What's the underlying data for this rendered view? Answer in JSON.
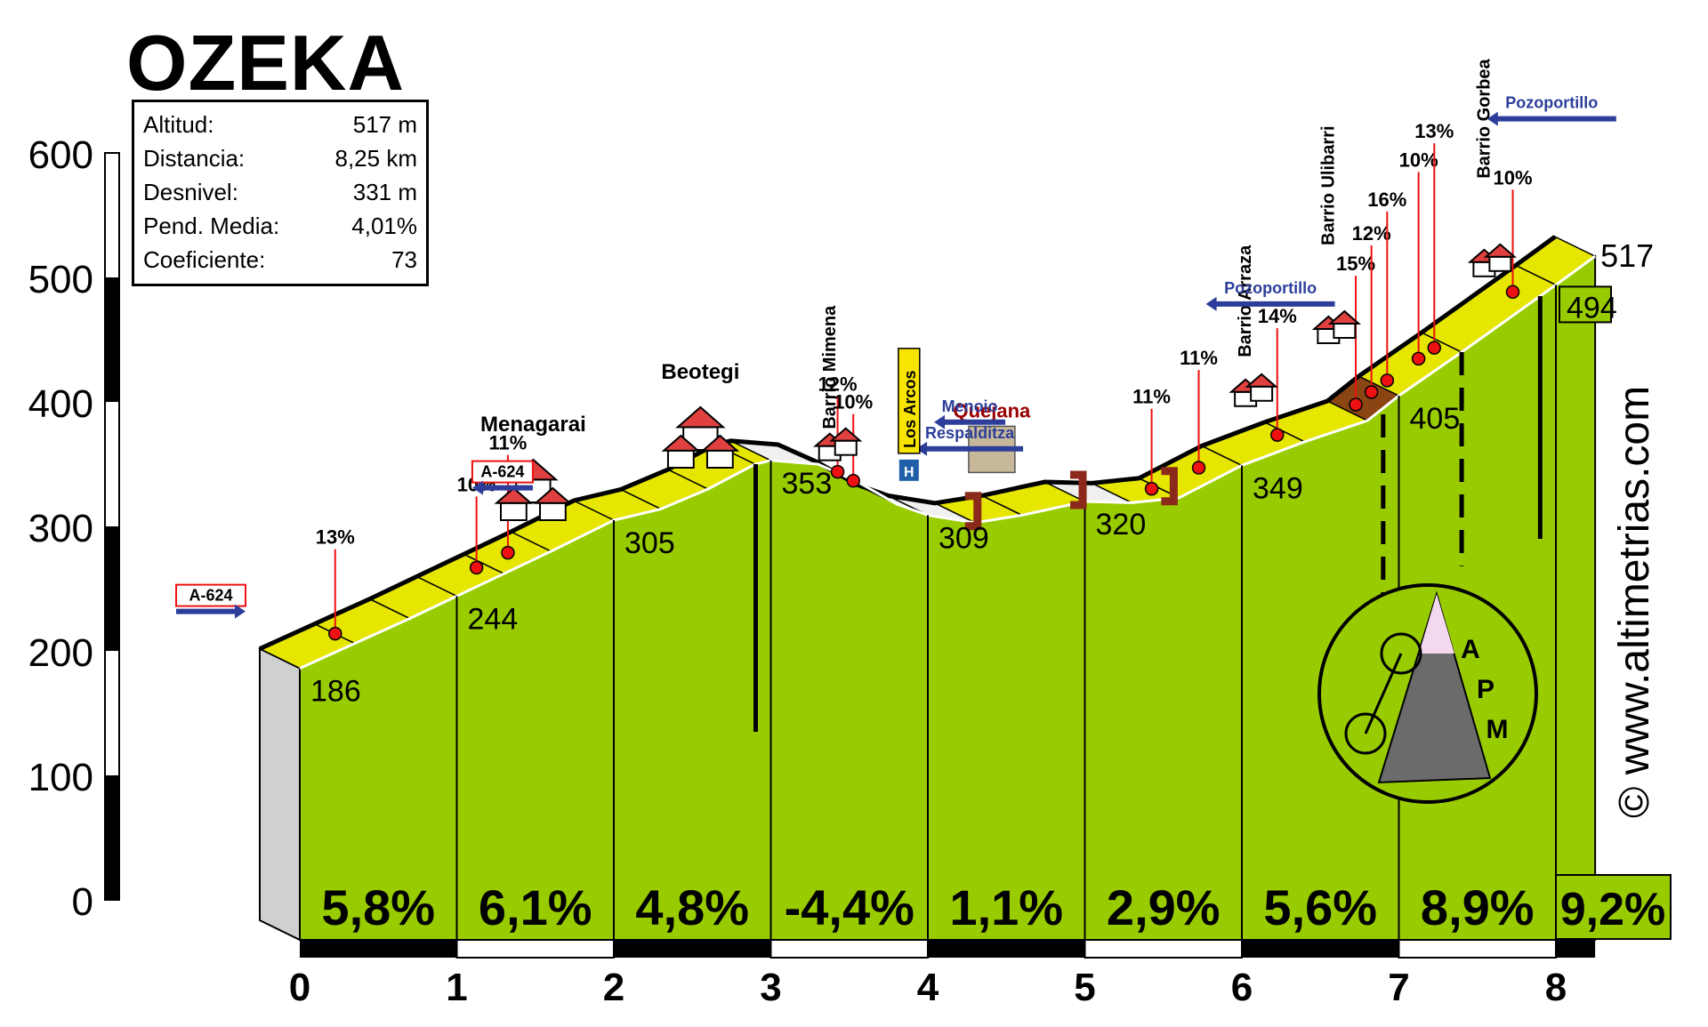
{
  "title": "OZEKA",
  "stats": [
    {
      "label": "Altitud:",
      "value": "517 m"
    },
    {
      "label": "Distancia:",
      "value": "8,25 km"
    },
    {
      "label": "Desnivel:",
      "value": "331 m"
    },
    {
      "label": "Pend. Media:",
      "value": "4,01%"
    },
    {
      "label": "Coeficiente:",
      "value": "73"
    }
  ],
  "copyright": "© www.altimetrias.com",
  "logo_letters": [
    "A",
    "P",
    "M"
  ],
  "colors": {
    "fill_green": "#99cc00",
    "road_yellow": "#e6e600",
    "road_brown": "#8b4513",
    "marker_red": "#ee1111",
    "sign_blue": "#2c3e9a",
    "text_red": "#990000"
  },
  "chart_data": {
    "type": "area",
    "xlabel": "",
    "ylabel": "",
    "xlim": [
      0,
      8.25
    ],
    "ylim": [
      0,
      600
    ],
    "x_ticks": [
      "0",
      "1",
      "2",
      "3",
      "4",
      "5",
      "6",
      "7",
      "8"
    ],
    "y_ticks": [
      "0",
      "100",
      "200",
      "300",
      "400",
      "500",
      "600"
    ],
    "profile": [
      {
        "km": 0,
        "alt": 186
      },
      {
        "km": 0.35,
        "alt": 206
      },
      {
        "km": 0.7,
        "alt": 226
      },
      {
        "km": 1,
        "alt": 244
      },
      {
        "km": 1.3,
        "alt": 262
      },
      {
        "km": 1.6,
        "alt": 280
      },
      {
        "km": 2,
        "alt": 305
      },
      {
        "km": 2.3,
        "alt": 314
      },
      {
        "km": 2.6,
        "alt": 330
      },
      {
        "km": 2.9,
        "alt": 350
      },
      {
        "km": 3,
        "alt": 353
      },
      {
        "km": 3.3,
        "alt": 350
      },
      {
        "km": 3.55,
        "alt": 336
      },
      {
        "km": 3.8,
        "alt": 318
      },
      {
        "km": 4,
        "alt": 309
      },
      {
        "km": 4.3,
        "alt": 303
      },
      {
        "km": 4.6,
        "alt": 309
      },
      {
        "km": 5,
        "alt": 320
      },
      {
        "km": 5.3,
        "alt": 319
      },
      {
        "km": 5.6,
        "alt": 323
      },
      {
        "km": 6,
        "alt": 349
      },
      {
        "km": 6.4,
        "alt": 368
      },
      {
        "km": 6.8,
        "alt": 385
      },
      {
        "km": 7,
        "alt": 405
      },
      {
        "km": 7.4,
        "alt": 440
      },
      {
        "km": 8,
        "alt": 494
      },
      {
        "km": 8.25,
        "alt": 517
      }
    ],
    "km_points": [
      {
        "km": 0,
        "alt": 186,
        "label": "186"
      },
      {
        "km": 1,
        "alt": 244,
        "label": "244"
      },
      {
        "km": 2,
        "alt": 305,
        "label": "305"
      },
      {
        "km": 3,
        "alt": 353,
        "label": "353"
      },
      {
        "km": 4,
        "alt": 309,
        "label": "309"
      },
      {
        "km": 5,
        "alt": 320,
        "label": "320"
      },
      {
        "km": 6,
        "alt": 349,
        "label": "349"
      },
      {
        "km": 7,
        "alt": 405,
        "label": "405"
      },
      {
        "km": 8,
        "alt": 494,
        "label": "494"
      }
    ],
    "final_altitude": {
      "km": 8.25,
      "alt": 517,
      "label": "517"
    },
    "segments": [
      {
        "from_km": 0,
        "to_km": 1,
        "gradient": "5,8%"
      },
      {
        "from_km": 1,
        "to_km": 2,
        "gradient": "6,1%"
      },
      {
        "from_km": 2,
        "to_km": 3,
        "gradient": "4,8%"
      },
      {
        "from_km": 3,
        "to_km": 4,
        "gradient": "-4,4%"
      },
      {
        "from_km": 4,
        "to_km": 5,
        "gradient": "1,1%"
      },
      {
        "from_km": 5,
        "to_km": 6,
        "gradient": "2,9%"
      },
      {
        "from_km": 6,
        "to_km": 7,
        "gradient": "5,6%"
      },
      {
        "from_km": 7,
        "to_km": 8,
        "gradient": "8,9%"
      },
      {
        "from_km": 8,
        "to_km": 8.25,
        "gradient": "9,2%"
      }
    ],
    "gradient_markers": [
      {
        "km": 0.35,
        "label": "13%"
      },
      {
        "km": 1.25,
        "label": "10%"
      },
      {
        "km": 1.45,
        "label": "11%"
      },
      {
        "km": 3.55,
        "label": "12%"
      },
      {
        "km": 3.65,
        "label": "10%"
      },
      {
        "km": 5.55,
        "label": "11%"
      },
      {
        "km": 5.85,
        "label": "11%"
      },
      {
        "km": 6.35,
        "label": "14%"
      },
      {
        "km": 6.85,
        "label": "15%"
      },
      {
        "km": 6.95,
        "label": "12%"
      },
      {
        "km": 7.05,
        "label": "16%"
      },
      {
        "km": 7.25,
        "label": "10%"
      },
      {
        "km": 7.35,
        "label": "13%"
      },
      {
        "km": 7.85,
        "label": "10%"
      }
    ],
    "places": [
      {
        "km": 1.6,
        "name": "Menagarai",
        "style": "horizontal"
      },
      {
        "km": 2.75,
        "name": "Beotegi",
        "style": "horizontal"
      },
      {
        "km": 3.5,
        "name": "Barrio Mimena",
        "style": "vertical"
      },
      {
        "km": 4.6,
        "name": "Quejana",
        "style": "horizontal-red"
      },
      {
        "km": 6.25,
        "name": "Barrio Arraza",
        "style": "vertical"
      },
      {
        "km": 6.75,
        "name": "Barrio Ulibarri",
        "style": "vertical"
      },
      {
        "km": 7.6,
        "name": "Barrio Gorbea",
        "style": "vertical"
      }
    ],
    "road_signs": [
      {
        "km": 0,
        "label": "A-624",
        "dir": "right"
      },
      {
        "km": 1.45,
        "label": "A-624",
        "dir": "left"
      },
      {
        "km": 4.55,
        "label": "Menoio",
        "dir": "left"
      },
      {
        "km": 4.55,
        "label": "Respalditza",
        "dir": "left"
      },
      {
        "km": 6.55,
        "label": "Pozoportillo",
        "dir": "left"
      },
      {
        "km": 8.2,
        "label": "Pozoportillo",
        "dir": "left"
      }
    ],
    "los_arcos_label": "Los Arcos",
    "hostel_label": "H"
  }
}
